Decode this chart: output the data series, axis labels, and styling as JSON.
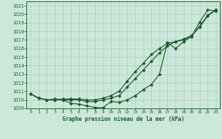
{
  "title": "Graphe pression niveau de la mer (hPa)",
  "bg_color": "#cce8da",
  "grid_color": "#aaccbb",
  "line_color": "#1a5c28",
  "marker_color": "#1a5c28",
  "xlim": [
    -0.5,
    23.5
  ],
  "ylim": [
    1009,
    1021.5
  ],
  "ytick_min": 1009,
  "ytick_max": 1021,
  "series": [
    [
      1010.7,
      1010.2,
      1010.0,
      1010.1,
      1010.0,
      1009.6,
      1009.5,
      1009.3,
      1009.1,
      1009.1,
      1009.8,
      1009.7,
      1010.0,
      1010.5,
      1011.2,
      1011.8,
      1013.0,
      1016.7,
      1016.0,
      1016.8,
      1017.4,
      1019.1,
      1020.5,
      1020.4
    ],
    [
      1010.7,
      1010.2,
      1010.0,
      1010.0,
      1010.0,
      1010.0,
      1010.0,
      1009.8,
      1009.8,
      1010.0,
      1010.2,
      1010.5,
      1011.5,
      1012.5,
      1013.5,
      1014.5,
      1015.5,
      1016.3,
      1016.8,
      1017.0,
      1017.5,
      1018.5,
      1019.8,
      1020.5
    ],
    [
      1010.7,
      1010.2,
      1010.0,
      1010.0,
      1010.1,
      1010.1,
      1010.1,
      1010.0,
      1010.0,
      1010.2,
      1010.5,
      1011.0,
      1012.2,
      1013.3,
      1014.3,
      1015.3,
      1016.0,
      1016.6,
      1016.8,
      1017.1,
      1017.5,
      1018.6,
      1019.9,
      1020.5
    ]
  ]
}
